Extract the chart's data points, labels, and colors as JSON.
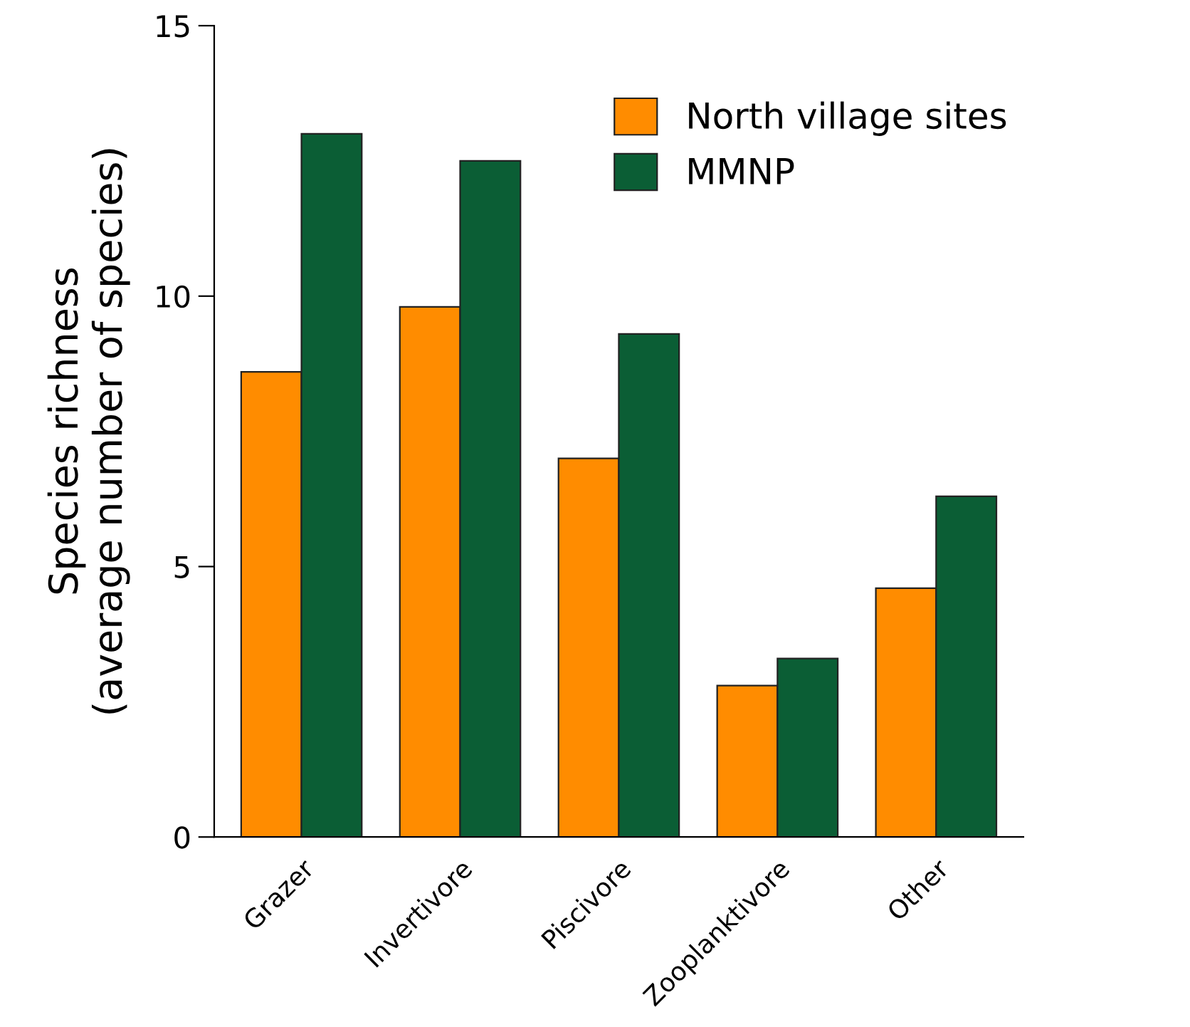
{
  "chart_data": {
    "type": "bar",
    "ylabel": "Species richness\n(average number of species)",
    "categories": [
      "Grazer",
      "Invertivore",
      "Piscivore",
      "Zooplanktivore",
      "Other"
    ],
    "series": [
      {
        "name": "North village sites",
        "color": "#ff8c00",
        "values": [
          8.6,
          9.8,
          7.0,
          2.8,
          4.6
        ]
      },
      {
        "name": "MMNP",
        "color": "#0b5e35",
        "values": [
          13.0,
          12.5,
          9.3,
          3.3,
          6.3
        ]
      }
    ],
    "ylim": [
      0,
      15
    ],
    "yticks": [
      0,
      5,
      10,
      15
    ],
    "grid": false,
    "legend": "top right"
  }
}
